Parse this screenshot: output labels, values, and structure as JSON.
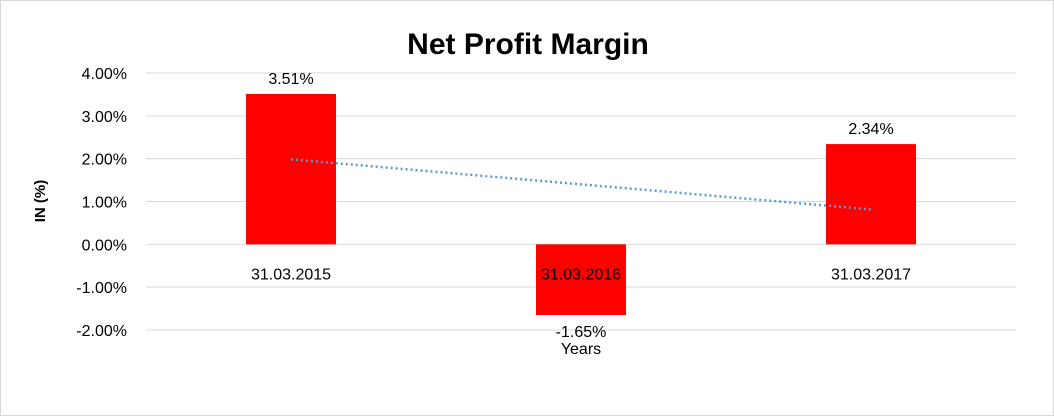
{
  "chart_data": {
    "type": "bar",
    "title": "Net Profit Margin",
    "xlabel": "Years",
    "ylabel": "IN (%)",
    "categories": [
      "31.03.2015",
      "31.03.2016",
      "31.03.2017"
    ],
    "values": [
      3.51,
      -1.65,
      2.34
    ],
    "data_labels": [
      "3.51%",
      "-1.65%",
      "2.34%"
    ],
    "ylim": [
      -2,
      4
    ],
    "yticks": [
      4,
      3,
      2,
      1,
      0,
      -1,
      -2
    ],
    "ytick_labels": [
      "4.00%",
      "3.00%",
      "2.00%",
      "1.00%",
      "0.00%",
      "-1.00%",
      "-2.00%"
    ],
    "grid": true,
    "trendline": {
      "type": "linear",
      "style": "dotted"
    },
    "colors": {
      "bar": "#ff0000",
      "trend": "#5b9bd5",
      "grid": "#d9d9d9"
    }
  }
}
